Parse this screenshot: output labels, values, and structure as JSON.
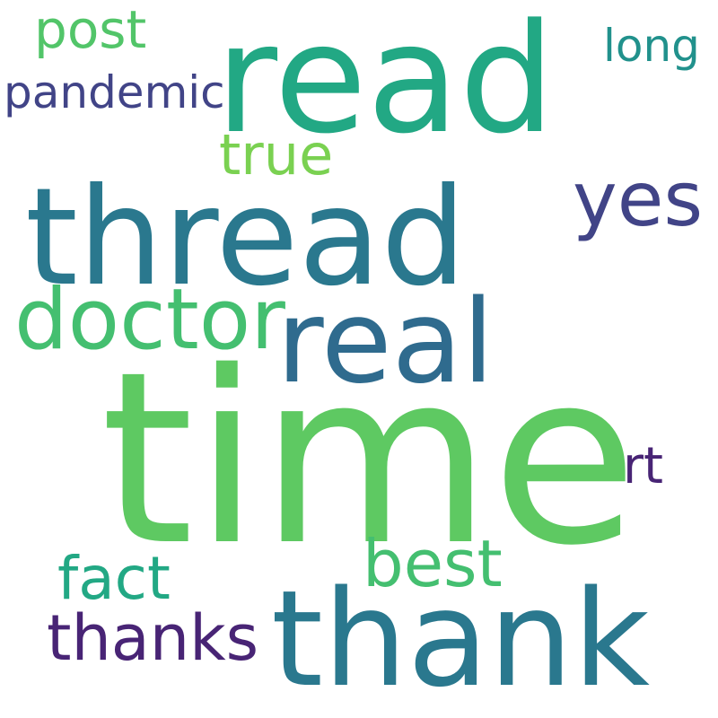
{
  "word_cloud": {
    "background_color": "#ffffff",
    "words": [
      {
        "text": "time",
        "color": "#5ec962"
      },
      {
        "text": "thread",
        "color": "#2a788e"
      },
      {
        "text": "read",
        "color": "#22a884"
      },
      {
        "text": "thank",
        "color": "#2a788e"
      },
      {
        "text": "real",
        "color": "#2f6b8e"
      },
      {
        "text": "doctor",
        "color": "#44bf70"
      },
      {
        "text": "yes",
        "color": "#414487"
      },
      {
        "text": "best",
        "color": "#44bf70"
      },
      {
        "text": "fact",
        "color": "#22a884"
      },
      {
        "text": "thanks",
        "color": "#482475"
      },
      {
        "text": "true",
        "color": "#7ad151"
      },
      {
        "text": "post",
        "color": "#52c569"
      },
      {
        "text": "pandemic",
        "color": "#414487"
      },
      {
        "text": "long",
        "color": "#21918c"
      },
      {
        "text": "rt",
        "color": "#482475"
      }
    ]
  }
}
